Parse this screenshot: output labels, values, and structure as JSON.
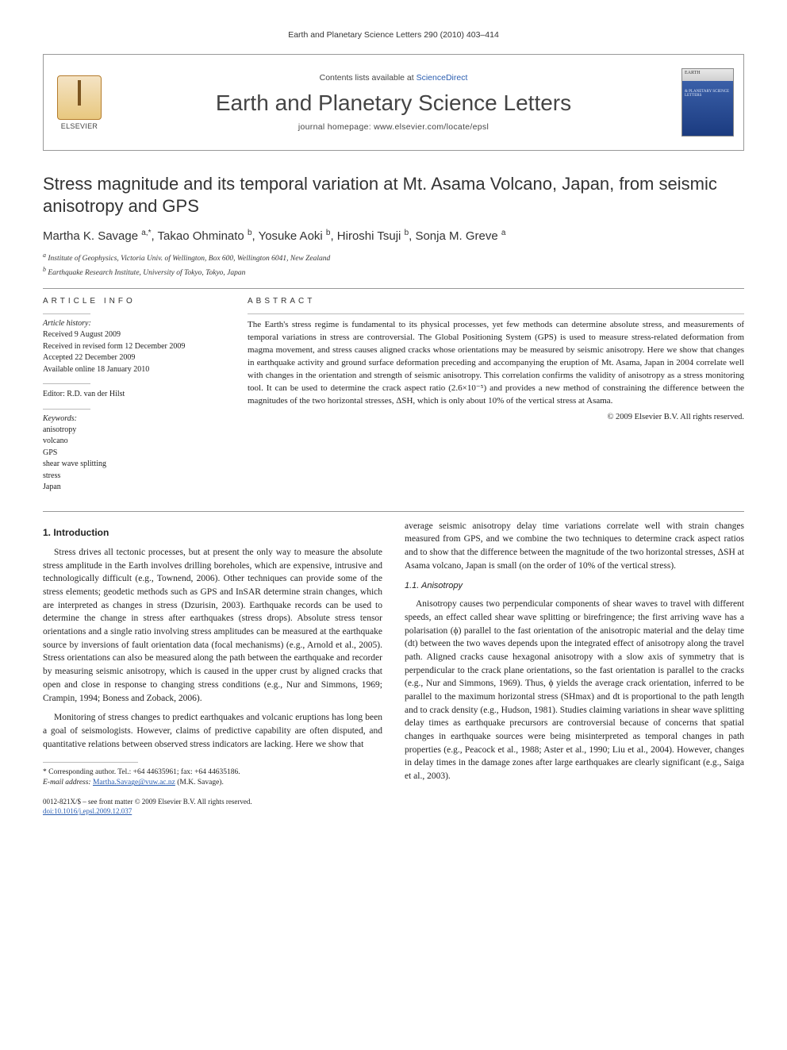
{
  "running_head": "Earth and Planetary Science Letters 290 (2010) 403–414",
  "masthead": {
    "contents_prefix": "Contents lists available at ",
    "contents_link": "ScienceDirect",
    "journal": "Earth and Planetary Science Letters",
    "homepage_label": "journal homepage: www.elsevier.com/locate/epsl",
    "publisher_name": "ELSEVIER",
    "cover_title": "EARTH",
    "cover_sub": "& PLANETARY SCIENCE LETTERS"
  },
  "article": {
    "title": "Stress magnitude and its temporal variation at Mt. Asama Volcano, Japan, from seismic anisotropy and GPS",
    "authors_html": "Martha K. Savage <sup>a,*</sup>, Takao Ohminato <sup>b</sup>, Yosuke Aoki <sup>b</sup>, Hiroshi Tsuji <sup>b</sup>, Sonja M. Greve <sup>a</sup>",
    "affiliations": {
      "a": "Institute of Geophysics, Victoria Univ. of Wellington, Box 600, Wellington 6041, New Zealand",
      "b": "Earthquake Research Institute, University of Tokyo, Tokyo, Japan"
    }
  },
  "info": {
    "head": "ARTICLE INFO",
    "history_label": "Article history:",
    "history": [
      "Received 9 August 2009",
      "Received in revised form 12 December 2009",
      "Accepted 22 December 2009",
      "Available online 18 January 2010"
    ],
    "editor_label": "Editor: R.D. van der Hilst",
    "keywords_label": "Keywords:",
    "keywords": [
      "anisotropy",
      "volcano",
      "GPS",
      "shear wave splitting",
      "stress",
      "Japan"
    ]
  },
  "abstract": {
    "head": "ABSTRACT",
    "text": "The Earth's stress regime is fundamental to its physical processes, yet few methods can determine absolute stress, and measurements of temporal variations in stress are controversial. The Global Positioning System (GPS) is used to measure stress-related deformation from magma movement, and stress causes aligned cracks whose orientations may be measured by seismic anisotropy. Here we show that changes in earthquake activity and ground surface deformation preceding and accompanying the eruption of Mt. Asama, Japan in 2004 correlate well with changes in the orientation and strength of seismic anisotropy. This correlation confirms the validity of anisotropy as a stress monitoring tool. It can be used to determine the crack aspect ratio (2.6×10⁻⁵) and provides a new method of constraining the difference between the magnitudes of the two horizontal stresses, ΔSH, which is only about 10% of the vertical stress at Asama.",
    "copyright": "© 2009 Elsevier B.V. All rights reserved."
  },
  "body": {
    "section1_title": "1. Introduction",
    "p1": "Stress drives all tectonic processes, but at present the only way to measure the absolute stress amplitude in the Earth involves drilling boreholes, which are expensive, intrusive and technologically difficult (e.g., Townend, 2006). Other techniques can provide some of the stress elements; geodetic methods such as GPS and InSAR determine strain changes, which are interpreted as changes in stress (Dzurisin, 2003). Earthquake records can be used to determine the change in stress after earthquakes (stress drops). Absolute stress tensor orientations and a single ratio involving stress amplitudes can be measured at the earthquake source by inversions of fault orientation data (focal mechanisms) (e.g., Arnold et al., 2005). Stress orientations can also be measured along the path between the earthquake and recorder by measuring seismic anisotropy, which is caused in the upper crust by aligned cracks that open and close in response to changing stress conditions (e.g., Nur and Simmons, 1969; Crampin, 1994; Boness and Zoback, 2006).",
    "p2": "Monitoring of stress changes to predict earthquakes and volcanic eruptions has long been a goal of seismologists. However, claims of predictive capability are often disputed, and quantitative relations between observed stress indicators are lacking. Here we show that",
    "p3": "average seismic anisotropy delay time variations correlate well with strain changes measured from GPS, and we combine the two techniques to determine crack aspect ratios and to show that the difference between the magnitude of the two horizontal stresses, ΔSH at Asama volcano, Japan is small (on the order of 10% of the vertical stress).",
    "section11_title": "1.1. Anisotropy",
    "p4": "Anisotropy causes two perpendicular components of shear waves to travel with different speeds, an effect called shear wave splitting or birefringence; the first arriving wave has a polarisation (ϕ) parallel to the fast orientation of the anisotropic material and the delay time (dt) between the two waves depends upon the integrated effect of anisotropy along the travel path. Aligned cracks cause hexagonal anisotropy with a slow axis of symmetry that is perpendicular to the crack plane orientations, so the fast orientation is parallel to the cracks (e.g., Nur and Simmons, 1969). Thus, ϕ yields the average crack orientation, inferred to be parallel to the maximum horizontal stress (SHmax) and dt is proportional to the path length and to crack density (e.g., Hudson, 1981). Studies claiming variations in shear wave splitting delay times as earthquake precursors are controversial because of concerns that spatial changes in earthquake sources were being misinterpreted as temporal changes in path properties (e.g., Peacock et al., 1988; Aster et al., 1990; Liu et al., 2004). However, changes in delay times in the damage zones after large earthquakes are clearly significant (e.g., Saiga et al., 2003)."
  },
  "footer": {
    "corresponding": "* Corresponding author. Tel.: +64 44635961; fax: +64 44635186.",
    "email_label": "E-mail address:",
    "email": "Martha.Savage@vuw.ac.nz",
    "email_suffix": "(M.K. Savage).",
    "issn_line": "0012-821X/$ – see front matter © 2009 Elsevier B.V. All rights reserved.",
    "doi": "doi:10.1016/j.epsl.2009.12.037"
  },
  "colors": {
    "link": "#2a5db0",
    "rule": "#999999",
    "text": "#222222"
  }
}
